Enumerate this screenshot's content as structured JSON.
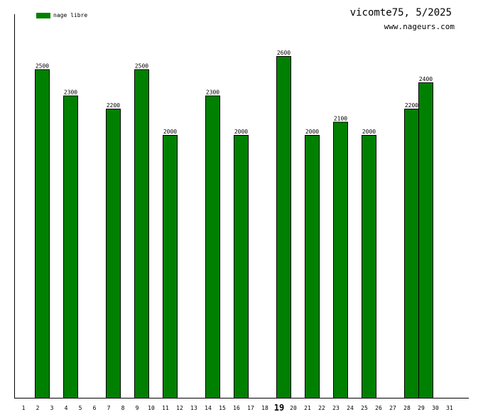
{
  "header": {
    "title": "vicomte75, 5/2025",
    "subtitle": "www.nageurs.com"
  },
  "colors": {
    "bar_fill": "#008000",
    "bar_stroke": "#000000",
    "axis": "#000000"
  },
  "chart_data": {
    "type": "bar",
    "x": [
      1,
      2,
      3,
      4,
      5,
      6,
      7,
      8,
      9,
      10,
      11,
      12,
      13,
      14,
      15,
      16,
      17,
      18,
      19,
      20,
      21,
      22,
      23,
      24,
      25,
      26,
      27,
      28,
      29,
      30,
      31
    ],
    "highlight_x": 19,
    "series": [
      {
        "name": "nage libre",
        "points": [
          {
            "x": 2,
            "y": 2500
          },
          {
            "x": 4,
            "y": 2300
          },
          {
            "x": 7,
            "y": 2200
          },
          {
            "x": 9,
            "y": 2500
          },
          {
            "x": 11,
            "y": 2000
          },
          {
            "x": 14,
            "y": 2300
          },
          {
            "x": 16,
            "y": 2000
          },
          {
            "x": 19,
            "y": 2600
          },
          {
            "x": 21,
            "y": 2000
          },
          {
            "x": 23,
            "y": 2100
          },
          {
            "x": 25,
            "y": 2000
          },
          {
            "x": 28,
            "y": 2200
          },
          {
            "x": 29,
            "y": 2400
          }
        ]
      }
    ],
    "ylim": [
      0,
      2600
    ],
    "grid": false,
    "legend_position": "top-left"
  }
}
